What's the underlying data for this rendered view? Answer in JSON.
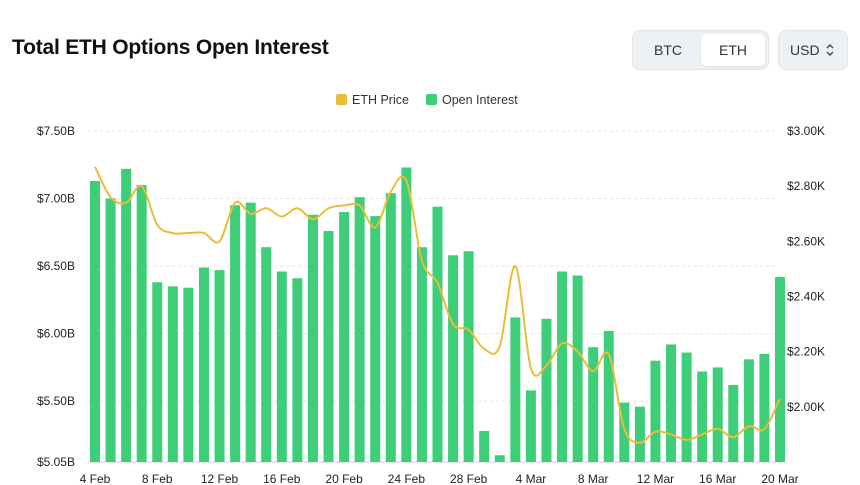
{
  "header": {
    "title": "Total ETH Options Open Interest",
    "toggle": {
      "btc": "BTC",
      "eth": "ETH",
      "active": "ETH"
    },
    "currency": "USD"
  },
  "colors": {
    "bar": "#3ecd78",
    "line": "#e9bd3a",
    "grid": "#e6e6e6"
  },
  "chart_data": {
    "type": "bar",
    "legend": [
      "ETH Price",
      "Open Interest"
    ],
    "legend_position": "top-center",
    "grid": true,
    "y_left": {
      "ticks": [
        "$5.05B",
        "$5.50B",
        "$6.00B",
        "$6.50B",
        "$7.00B",
        "$7.50B"
      ],
      "min": 5.05,
      "max": 7.5,
      "unit": "B USD"
    },
    "y_right": {
      "ticks": [
        "$2.00K",
        "$2.20K",
        "$2.40K",
        "$2.60K",
        "$2.80K",
        "$3.00K"
      ],
      "min": 1.8,
      "max": 3.0,
      "unit": "K USD"
    },
    "x_ticks": [
      "4 Feb",
      "8 Feb",
      "12 Feb",
      "16 Feb",
      "20 Feb",
      "24 Feb",
      "28 Feb",
      "4 Mar",
      "8 Mar",
      "12 Mar",
      "16 Mar",
      "20 Mar"
    ],
    "series": [
      {
        "name": "Open Interest",
        "type": "bar",
        "axis": "left",
        "values": [
          7.13,
          7.0,
          7.22,
          7.1,
          6.38,
          6.35,
          6.34,
          6.49,
          6.47,
          6.95,
          6.97,
          6.64,
          6.46,
          6.41,
          6.88,
          6.76,
          6.9,
          7.01,
          6.87,
          7.04,
          7.23,
          6.64,
          6.94,
          6.58,
          6.61,
          5.28,
          5.1,
          6.12,
          5.58,
          6.11,
          6.46,
          6.43,
          5.9,
          6.02,
          5.49,
          5.46,
          5.8,
          5.92,
          5.86,
          5.72,
          5.75,
          5.62,
          5.81,
          5.85,
          6.42
        ]
      },
      {
        "name": "ETH Price",
        "type": "line",
        "axis": "right",
        "values": [
          2.87,
          2.76,
          2.74,
          2.8,
          2.66,
          2.63,
          2.63,
          2.63,
          2.6,
          2.74,
          2.7,
          2.72,
          2.69,
          2.72,
          2.68,
          2.72,
          2.73,
          2.73,
          2.65,
          2.78,
          2.82,
          2.53,
          2.45,
          2.3,
          2.28,
          2.21,
          2.22,
          2.51,
          2.14,
          2.15,
          2.23,
          2.2,
          2.13,
          2.19,
          1.92,
          1.87,
          1.91,
          1.9,
          1.88,
          1.9,
          1.92,
          1.89,
          1.93,
          1.92,
          2.03
        ]
      }
    ]
  }
}
